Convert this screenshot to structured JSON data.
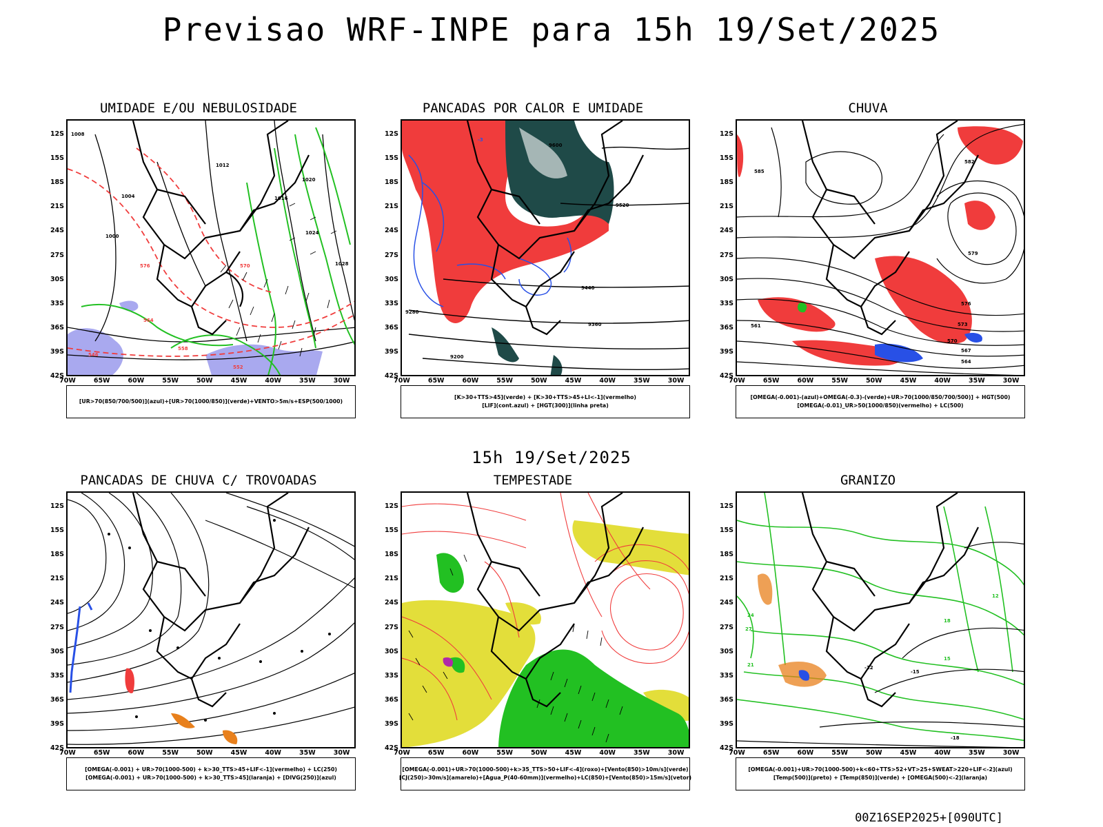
{
  "title": "Previsao WRF-INPE  para 15h 19/Set/2025",
  "mid_time": "15h 19/Set/2025",
  "footer": "00Z16SEP2025+[090UTC]",
  "lat_labels": [
    "12S",
    "15S",
    "18S",
    "21S",
    "24S",
    "27S",
    "30S",
    "33S",
    "36S",
    "39S",
    "42S"
  ],
  "lon_labels": [
    "70W",
    "65W",
    "60W",
    "55W",
    "50W",
    "45W",
    "40W",
    "35W",
    "30W"
  ],
  "panels": [
    {
      "title": "UMIDADE E/OU NEBULOSIDADE",
      "legend": [
        "[UR>70(850/700/500)](azul)+[UR>70(1000/850)](verde)+VENTO>5m/s+ESP(500/1000)"
      ],
      "contour_labels": [
        "1008",
        "1012",
        "1016",
        "1020",
        "1024",
        "1028",
        "1004",
        "1000",
        "576",
        "570",
        "564",
        "558",
        "552",
        "546"
      ]
    },
    {
      "title": "PANCADAS POR CALOR E UMIDADE",
      "legend": [
        "[K>30+TTS>45](verde) + [K>30+TTS>45+LI<-1](vermelho)",
        "[LIF](cont.azul) + [HGT(300)](linha preta)"
      ],
      "contour_labels": [
        "9600",
        "9520",
        "9440",
        "9360",
        "9280",
        "9200",
        "-3"
      ]
    },
    {
      "title": "CHUVA",
      "legend": [
        "[OMEGA(-0.001)-(azul)+OMEGA(-0.3)-(verde)+UR>70(1000/850/700/500)] + HGT(500)",
        "[OMEGA(-0.01)_UR>50(1000/850)(vermelho) + LC(500)"
      ],
      "contour_labels": [
        "582",
        "579",
        "576",
        "573",
        "570",
        "567",
        "564",
        "561",
        "585"
      ]
    },
    {
      "title": "PANCADAS DE CHUVA C/ TROVOADAS",
      "legend": [
        "[OMEGA(-0.001) + UR>70(1000-500) + k>30_TTS>45+LIF<-1](vermelho) + LC(250)",
        "[OMEGA(-0.001) + UR>70(1000-500) + k>30_TTS>45](laranja) + [DIVG(250)](azul)"
      ],
      "contour_labels": []
    },
    {
      "title": "TEMPESTADE",
      "legend": [
        "[OMEGA(-0.001)+UR>70(1000-500)+k>35_TTS>50+LIF<-4](roxo)+[Vento(850)>10m/s](verde)",
        "[CJ(250)>30m/s](amarelo)+[Agua_P(40-60mm)](vermelho)+LC(850)+[Vento(850)>15m/s](vetor)"
      ],
      "contour_labels": []
    },
    {
      "title": "GRANIZO",
      "legend": [
        "[OMEGA(-0.001)+UR>70(1000-500)+k<60+TTS>52+VT>25+SWEAT>220+LIF<-2](azul)",
        "[Temp(500)](preto) + [Temp(850)](verde) + [OMEGA(500)<-2](laranja)"
      ],
      "contour_labels": [
        "12",
        "15",
        "18",
        "21",
        "24",
        "27",
        "-12",
        "-15",
        "-18"
      ]
    }
  ],
  "colors": {
    "red": "#f03c3c",
    "green": "#22c022",
    "blue": "#2850e6",
    "darkteal": "#1f4a48",
    "lavender": "#a9a9ef",
    "yellow": "#e3de3a",
    "orange": "#e8801c",
    "purple": "#b02aa8"
  }
}
